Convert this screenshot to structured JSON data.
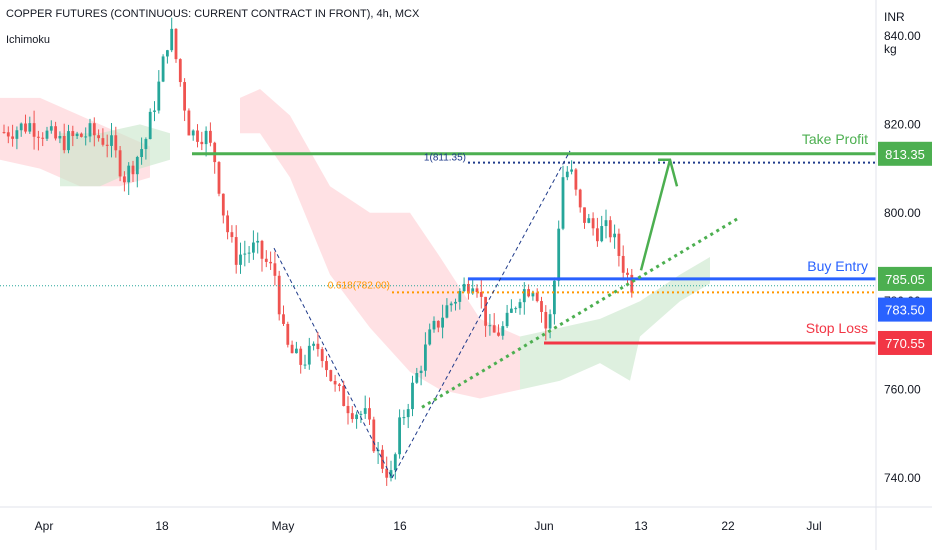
{
  "header": {
    "title": "COPPER FUTURES (CONTINUOUS: CURRENT CONTRACT IN FRONT), 4h, MCX",
    "indicator": "Ichimoku"
  },
  "axis": {
    "currency": "INR",
    "unit": "kg"
  },
  "colors": {
    "up": "#26a69a",
    "down": "#ef5350",
    "green_line": "#4caf50",
    "blue_line": "#2962ff",
    "red_line": "#f23645",
    "cloud_green": "#c8e6c9",
    "cloud_red": "#ffcdd2",
    "fib_orange": "#ff9800",
    "dotted_blue": "#1e3a8a"
  },
  "chart_data": {
    "type": "candlestick",
    "title": "COPPER FUTURES (CONTINUOUS: CURRENT CONTRACT IN FRONT), 4h, MCX",
    "ylim": [
      734,
      848
    ],
    "yticks": [
      740,
      760,
      780,
      800,
      820,
      840
    ],
    "ytick_labels": [
      "740.00",
      "760.00",
      "780.00",
      "800.00",
      "820.00",
      "840.00"
    ],
    "xtick_labels": [
      "Apr",
      "18",
      "May",
      "16",
      "Jun",
      "13",
      "22",
      "Jul"
    ],
    "price_path": [
      [
        0,
        818
      ],
      [
        30,
        820
      ],
      [
        60,
        816
      ],
      [
        90,
        818
      ],
      [
        110,
        816
      ],
      [
        125,
        808
      ],
      [
        145,
        816
      ],
      [
        160,
        830
      ],
      [
        170,
        842
      ],
      [
        180,
        830
      ],
      [
        190,
        818
      ],
      [
        205,
        818
      ],
      [
        215,
        812
      ],
      [
        225,
        798
      ],
      [
        235,
        790
      ],
      [
        255,
        792
      ],
      [
        275,
        786
      ],
      [
        285,
        770
      ],
      [
        300,
        766
      ],
      [
        320,
        770
      ],
      [
        335,
        760
      ],
      [
        350,
        756
      ],
      [
        365,
        754
      ],
      [
        380,
        744
      ],
      [
        392,
        740
      ],
      [
        400,
        752
      ],
      [
        415,
        762
      ],
      [
        430,
        772
      ],
      [
        445,
        778
      ],
      [
        460,
        782
      ],
      [
        475,
        786
      ],
      [
        490,
        772
      ],
      [
        505,
        774
      ],
      [
        520,
        782
      ],
      [
        535,
        784
      ],
      [
        548,
        772
      ],
      [
        555,
        786
      ],
      [
        562,
        808
      ],
      [
        570,
        810
      ],
      [
        580,
        800
      ],
      [
        595,
        796
      ],
      [
        610,
        796
      ],
      [
        620,
        790
      ],
      [
        630,
        784
      ]
    ],
    "annotations": {
      "take_profit": {
        "label": "Take Profit",
        "value": 813.35,
        "value_label": "813.35"
      },
      "buy_entry": {
        "label": "Buy Entry",
        "value": 785.05,
        "value_label": "785.05"
      },
      "current_price": {
        "value": 783.5,
        "value_label": "783.50"
      },
      "stop_loss": {
        "label": "Stop Loss",
        "value": 770.55,
        "value_label": "770.55"
      },
      "fib_1": {
        "label": "1(811.35)",
        "value": 811.35
      },
      "fib_0618": {
        "label": "0.618(782.00)",
        "value": 782.0
      }
    }
  }
}
